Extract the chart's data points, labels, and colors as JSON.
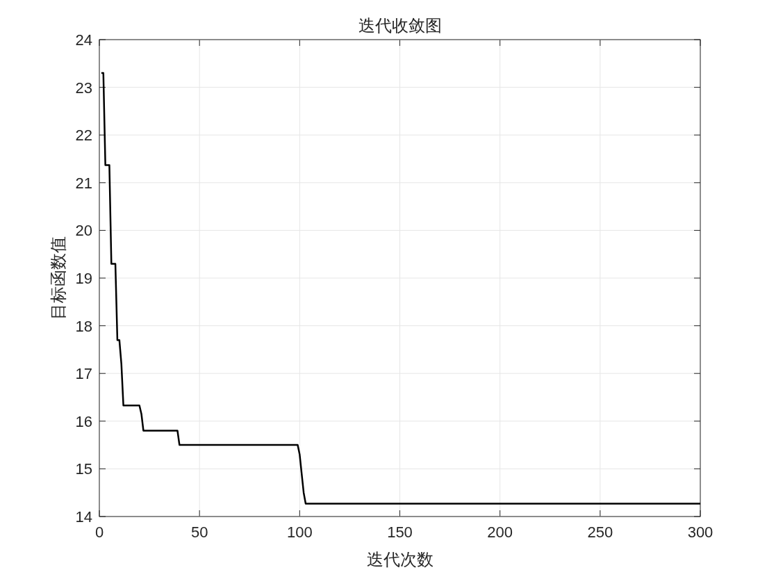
{
  "chart_data": {
    "type": "line",
    "title": "迭代收敛图",
    "xlabel": "迭代次数",
    "ylabel": "目标函数值",
    "x": [
      1,
      2,
      3,
      4,
      5,
      6,
      7,
      8,
      9,
      10,
      11,
      12,
      20,
      21,
      22,
      39,
      40,
      99,
      100,
      101,
      102,
      103,
      300
    ],
    "series": [
      {
        "color": "#000000",
        "values": [
          23.3,
          23.3,
          21.37,
          21.37,
          21.37,
          19.3,
          19.3,
          19.3,
          17.7,
          17.7,
          17.2,
          16.33,
          16.33,
          16.15,
          15.8,
          15.8,
          15.5,
          15.5,
          15.3,
          14.9,
          14.5,
          14.27,
          14.27
        ]
      }
    ],
    "xlim": [
      0,
      300
    ],
    "xticks": [
      0,
      50,
      100,
      150,
      200,
      250,
      300
    ],
    "ylim": [
      14,
      24
    ],
    "yticks": [
      14,
      15,
      16,
      17,
      18,
      19,
      20,
      21,
      22,
      23,
      24
    ],
    "grid": true,
    "marker": "none",
    "line_style": "solid"
  }
}
